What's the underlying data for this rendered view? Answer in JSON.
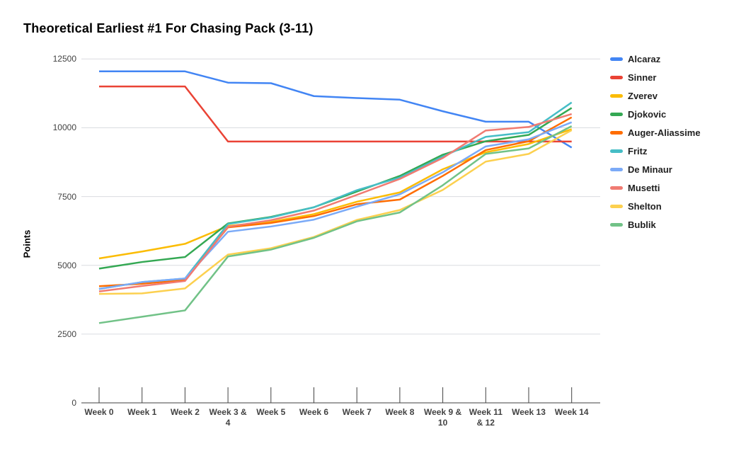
{
  "chart_data": {
    "type": "line",
    "title": "Theoretical Earliest #1 For Chasing Pack (3-11)",
    "ylabel": "Points",
    "xlabel": "",
    "ylim": [
      0,
      12500
    ],
    "y_ticks": [
      0,
      2500,
      5000,
      7500,
      10000,
      12500
    ],
    "grid": "horizontal",
    "legend_position": "right",
    "categories": [
      "Week 0",
      "Week 1",
      "Week 2",
      "Week 3 & 4",
      "Week 5",
      "Week 6",
      "Week 7",
      "Week 8",
      "Week 9 & 10",
      "Week 11 & 12",
      "Week 13",
      "Week 14"
    ],
    "series": [
      {
        "name": "Alcaraz",
        "color": "#4285F4",
        "values": [
          12050,
          12050,
          12050,
          11640,
          11620,
          11150,
          11080,
          11020,
          10600,
          10220,
          10220,
          9280
        ]
      },
      {
        "name": "Sinner",
        "color": "#EA4335",
        "values": [
          11500,
          11500,
          11500,
          9500,
          9500,
          9500,
          9500,
          9500,
          9500,
          9500,
          9500,
          9500
        ]
      },
      {
        "name": "Zverev",
        "color": "#FBBC04",
        "values": [
          5250,
          5500,
          5780,
          6430,
          6580,
          6860,
          7310,
          7650,
          8490,
          9110,
          9410,
          9950
        ]
      },
      {
        "name": "Djokovic",
        "color": "#34A853",
        "values": [
          4880,
          5120,
          5300,
          6520,
          6760,
          7110,
          7680,
          8250,
          9020,
          9510,
          9740,
          10720
        ]
      },
      {
        "name": "Auger-Aliassime",
        "color": "#FF6D01",
        "values": [
          4240,
          4330,
          4470,
          6380,
          6540,
          6790,
          7220,
          7390,
          8250,
          9190,
          9510,
          10380
        ]
      },
      {
        "name": "Fritz",
        "color": "#46BDC6",
        "values": [
          4140,
          4390,
          4520,
          6500,
          6740,
          7110,
          7730,
          8190,
          8950,
          9670,
          9840,
          10920
        ]
      },
      {
        "name": "De Minaur",
        "color": "#7BAAF7",
        "values": [
          4140,
          4390,
          4520,
          6220,
          6410,
          6660,
          7130,
          7580,
          8380,
          9320,
          9580,
          10200
        ]
      },
      {
        "name": "Musetti",
        "color": "#F07B72",
        "values": [
          4050,
          4250,
          4430,
          6400,
          6640,
          6990,
          7560,
          8140,
          8900,
          9900,
          10030,
          10500
        ]
      },
      {
        "name": "Shelton",
        "color": "#FCD04F",
        "values": [
          3960,
          3980,
          4160,
          5390,
          5620,
          6030,
          6650,
          7010,
          7740,
          8770,
          9050,
          9910
        ]
      },
      {
        "name": "Bublik",
        "color": "#71C287",
        "values": [
          2900,
          3130,
          3360,
          5320,
          5570,
          6000,
          6600,
          6920,
          7910,
          9050,
          9250,
          10060
        ]
      }
    ],
    "colors": {
      "gridline": "#dadce0",
      "axis_line": "#424242",
      "tick_mark": "#424242",
      "axis_text": "#424242",
      "background": "#ffffff"
    }
  }
}
